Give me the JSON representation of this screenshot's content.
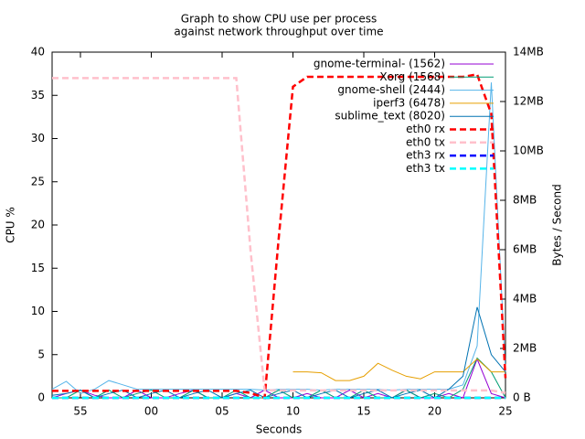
{
  "chart_data": {
    "type": "line",
    "title": "Graph to show CPU use per process",
    "subtitle": "against network throughput over time",
    "xlabel": "Seconds",
    "ylabel": "CPU %",
    "y2label": "Bytes / Second",
    "x": [
      53,
      54,
      55,
      56,
      57,
      58,
      59,
      60,
      61,
      62,
      63,
      64,
      65,
      66,
      67,
      68,
      69,
      70,
      71,
      72,
      73,
      74,
      75,
      76,
      77,
      78,
      79,
      80,
      81,
      82,
      83,
      84,
      85
    ],
    "xlim": [
      53,
      85
    ],
    "xticks": [
      55,
      {
        "value": 60,
        "label": "00"
      },
      {
        "value": 65,
        "label": "05"
      },
      {
        "value": 70,
        "label": "10"
      },
      {
        "value": 75,
        "label": "15"
      },
      {
        "value": 80,
        "label": "20"
      },
      {
        "value": 85,
        "label": "25"
      }
    ],
    "ylim": [
      0,
      40
    ],
    "yticks": [
      0,
      5,
      10,
      15,
      20,
      25,
      30,
      35,
      40
    ],
    "y2lim": [
      0,
      14
    ],
    "y2ticks": [
      {
        "value": 0,
        "label": "0 B"
      },
      {
        "value": 2,
        "label": "2MB"
      },
      {
        "value": 4,
        "label": "4MB"
      },
      {
        "value": 6,
        "label": "6MB"
      },
      {
        "value": 8,
        "label": "8MB"
      },
      {
        "value": 10,
        "label": "10MB"
      },
      {
        "value": 12,
        "label": "12MB"
      },
      {
        "value": 14,
        "label": "14MB"
      }
    ],
    "grid": false,
    "legend": "top-right",
    "series": [
      {
        "name": "gnome-terminal- (1562)",
        "color": "#9400d3",
        "dashed": false,
        "values": [
          0,
          0.5,
          0.9,
          0.3,
          0,
          0,
          0.9,
          0,
          0,
          0.5,
          0.9,
          0,
          0,
          0.5,
          0,
          0.9,
          0,
          0,
          0.5,
          0,
          0,
          0.9,
          0,
          0.5,
          0,
          0.9,
          0,
          0,
          0.5,
          0,
          4.5,
          0.5,
          0
        ]
      },
      {
        "name": "Xorg (1568)",
        "color": "#009e73",
        "dashed": false,
        "values": [
          0,
          0,
          0.9,
          0,
          0.9,
          0,
          0.5,
          0.9,
          0,
          0,
          0.9,
          0,
          0,
          0.9,
          0,
          0,
          0.9,
          0,
          0,
          0.9,
          0,
          0,
          0.9,
          0,
          0,
          0.9,
          0,
          0.5,
          0,
          1,
          4.6,
          3,
          0
        ]
      },
      {
        "name": "gnome-shell (2444)",
        "color": "#56b4e9",
        "dashed": false,
        "values": [
          1,
          1.9,
          0.5,
          1,
          2,
          1.5,
          1,
          1,
          1,
          1,
          1,
          1,
          1,
          1,
          1,
          0.9,
          1,
          1,
          1,
          0.9,
          1,
          1,
          1,
          1,
          0.9,
          1,
          1,
          1,
          1,
          1.5,
          6,
          36.5,
          3
        ]
      },
      {
        "name": "iperf3 (6478)",
        "color": "#e69f00",
        "dashed": false,
        "values": [
          null,
          null,
          null,
          null,
          null,
          null,
          null,
          null,
          null,
          null,
          null,
          null,
          null,
          null,
          null,
          null,
          null,
          3,
          3,
          2.9,
          2,
          2,
          2.5,
          4,
          3.2,
          2.5,
          2.2,
          3,
          3,
          3,
          4.5,
          3,
          3
        ]
      },
      {
        "name": "sublime_text (8020)",
        "color": "#0072b2",
        "dashed": false,
        "values": [
          0.3,
          0.5,
          0.9,
          0,
          0.5,
          0.9,
          0,
          0.5,
          0.9,
          0,
          0.5,
          0.9,
          0,
          0.5,
          0.9,
          0,
          0.5,
          0.9,
          0,
          0.5,
          0.9,
          0,
          0.5,
          0.9,
          0,
          0.5,
          0.9,
          0,
          1,
          2.5,
          10.5,
          5,
          3
        ]
      },
      {
        "name": "eth0 rx",
        "color": "#ff0000",
        "dashed": true,
        "axis": "y2",
        "values": [
          0.28,
          0.28,
          0.28,
          0.28,
          0.28,
          0.28,
          0.28,
          0.28,
          0.28,
          0.28,
          0.28,
          0.28,
          0.28,
          0.28,
          0.2,
          0,
          6.5,
          12.6,
          13,
          13,
          13,
          13,
          13,
          13,
          13,
          13,
          13,
          13,
          13,
          13,
          13.1,
          11.5,
          0.8
        ]
      },
      {
        "name": "eth0 tx",
        "color": "#ffc0cb",
        "dashed": true,
        "axis": "y2",
        "values": [
          12.95,
          12.95,
          12.95,
          12.95,
          12.95,
          12.95,
          12.95,
          12.95,
          12.95,
          12.95,
          12.95,
          12.95,
          12.95,
          12.95,
          6,
          0.3,
          0.3,
          0.3,
          0.3,
          0.3,
          0.3,
          0.3,
          0.3,
          0.3,
          0.3,
          0.3,
          0.3,
          0.3,
          0.3,
          0.3,
          0.3,
          0.3,
          0.2
        ]
      },
      {
        "name": "eth3 rx",
        "color": "#0000ff",
        "dashed": true,
        "axis": "y2",
        "values": [
          0,
          0,
          0,
          0,
          0,
          0,
          0,
          0,
          0,
          0,
          0,
          0,
          0,
          0,
          0,
          0,
          0,
          0,
          0,
          0,
          0,
          0,
          0,
          0,
          0,
          0,
          0,
          0,
          0,
          0,
          0,
          0,
          0
        ]
      },
      {
        "name": "eth3 tx",
        "color": "#00ffff",
        "dashed": true,
        "axis": "y2",
        "values": [
          0,
          0,
          0,
          0,
          0,
          0,
          0,
          0,
          0,
          0,
          0,
          0,
          0,
          0,
          0,
          0,
          0,
          0,
          0,
          0,
          0,
          0,
          0,
          0,
          0,
          0,
          0,
          0,
          0,
          0,
          0,
          0,
          0
        ]
      }
    ]
  }
}
